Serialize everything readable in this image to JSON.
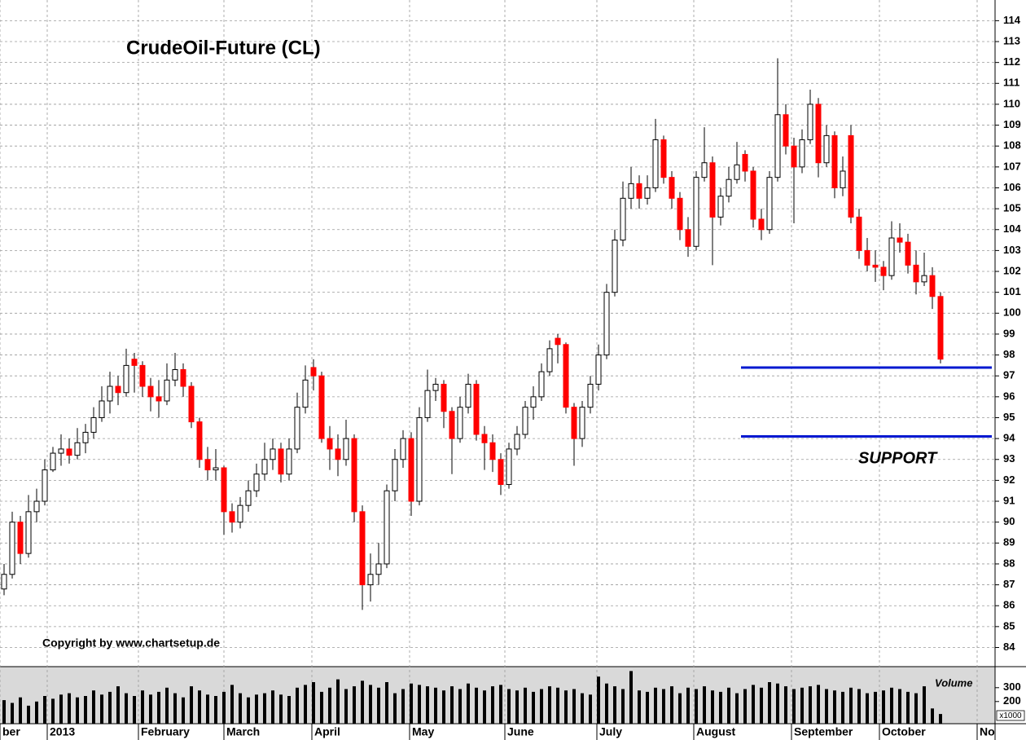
{
  "chart_data": {
    "type": "candlestick",
    "title": "CrudeOil-Future (CL)",
    "copyright": "Copyright by www.chartsetup.de",
    "support_label": "SUPPORT",
    "support_levels": [
      97.4,
      94.1
    ],
    "support_color": "#0018d0",
    "up_color": "#ffffff",
    "down_color": "#ff0000",
    "grid": true,
    "xlim": [
      0,
      122.2
    ],
    "xticks": [
      {
        "value": 0,
        "label": "ber"
      },
      {
        "value": 5.8,
        "label": "2013"
      },
      {
        "value": 17,
        "label": "February"
      },
      {
        "value": 27.5,
        "label": "March"
      },
      {
        "value": 38.3,
        "label": "April"
      },
      {
        "value": 50.3,
        "label": "May"
      },
      {
        "value": 62,
        "label": "June"
      },
      {
        "value": 73.3,
        "label": "July"
      },
      {
        "value": 85.2,
        "label": "August"
      },
      {
        "value": 97.2,
        "label": "September"
      },
      {
        "value": 108,
        "label": "October"
      },
      {
        "value": 120,
        "label": "No"
      }
    ],
    "ylim": [
      83.2,
      114.6
    ],
    "yticks": [
      84,
      85,
      86,
      87,
      88,
      89,
      90,
      91,
      92,
      93,
      94,
      95,
      96,
      97,
      98,
      99,
      100,
      101,
      102,
      103,
      104,
      105,
      106,
      107,
      108,
      109,
      110,
      111,
      112,
      113,
      114
    ],
    "open": [
      86.8,
      87.5,
      90.0,
      88.5,
      90.5,
      91.0,
      92.5,
      93.3,
      93.5,
      93.2,
      93.8,
      94.3,
      95.0,
      95.8,
      96.5,
      96.2,
      97.8,
      97.5,
      96.5,
      96.0,
      95.8,
      96.8,
      97.3,
      96.5,
      94.8,
      93.0,
      92.5,
      92.6,
      90.5,
      90.0,
      90.8,
      91.5,
      92.3,
      93.0,
      93.5,
      92.3,
      93.5,
      95.5,
      97.4,
      97.0,
      94.0,
      93.5,
      93.0,
      94.0,
      90.5,
      87.0,
      87.5,
      88.0,
      91.5,
      93.0,
      94.0,
      91.0,
      95.0,
      96.3,
      96.6,
      95.3,
      94.0,
      95.5,
      96.6,
      94.2,
      93.8,
      93.0,
      91.8,
      93.5,
      94.2,
      95.5,
      96.0,
      97.2,
      98.8,
      98.5,
      95.5,
      94.0,
      95.5,
      96.6,
      98.0,
      101.0,
      103.5,
      105.5,
      106.2,
      105.5,
      106.0,
      108.3,
      106.5,
      105.5,
      104.0,
      103.2,
      106.5,
      107.2,
      104.6,
      105.6,
      106.4,
      107.6,
      106.8,
      104.5,
      104.0,
      106.5,
      109.5,
      108.0,
      107.0,
      108.3,
      110.0,
      107.2,
      108.5,
      106.0,
      108.5,
      104.6,
      103.0,
      102.3,
      102.2,
      101.8,
      103.6,
      103.4,
      102.3,
      101.5,
      101.8,
      100.8
    ],
    "high": [
      88.0,
      90.5,
      90.3,
      91.3,
      91.6,
      93.0,
      93.6,
      94.2,
      94.0,
      94.5,
      94.7,
      95.5,
      96.5,
      97.2,
      97.0,
      98.3,
      98.1,
      97.7,
      96.9,
      96.8,
      97.6,
      98.1,
      97.6,
      96.7,
      95.0,
      93.6,
      93.5,
      92.7,
      90.9,
      91.2,
      92.0,
      92.8,
      93.8,
      94.0,
      93.8,
      94.0,
      96.2,
      97.5,
      97.8,
      97.2,
      94.6,
      94.2,
      94.9,
      94.2,
      90.8,
      88.5,
      89.0,
      91.8,
      93.5,
      94.4,
      94.3,
      95.5,
      97.3,
      96.9,
      96.8,
      95.5,
      96.0,
      97.1,
      96.8,
      94.6,
      94.2,
      93.3,
      93.8,
      94.6,
      95.8,
      96.5,
      97.6,
      98.7,
      99.0,
      98.6,
      95.7,
      95.8,
      97.0,
      98.5,
      101.4,
      104.0,
      106.3,
      107.0,
      106.6,
      106.6,
      109.3,
      108.5,
      106.8,
      105.8,
      104.6,
      106.8,
      108.9,
      107.5,
      106.0,
      107.0,
      108.2,
      107.8,
      107.0,
      105.0,
      106.8,
      112.2,
      110.0,
      108.4,
      108.8,
      110.7,
      110.3,
      109.0,
      108.7,
      107.5,
      109.0,
      105.0,
      103.6,
      103.0,
      102.5,
      104.4,
      104.3,
      103.8,
      103.0,
      102.9,
      102.2,
      101.0
    ],
    "low": [
      86.5,
      87.3,
      88.0,
      88.3,
      90.0,
      90.8,
      92.4,
      92.7,
      92.8,
      93.0,
      93.3,
      94.0,
      94.8,
      95.2,
      95.6,
      96.0,
      96.2,
      96.0,
      95.3,
      95.0,
      95.6,
      96.5,
      96.0,
      94.5,
      92.6,
      92.0,
      92.0,
      89.4,
      89.5,
      89.7,
      90.5,
      91.2,
      92.0,
      92.5,
      91.9,
      92.0,
      93.3,
      95.2,
      96.3,
      93.8,
      92.5,
      92.2,
      92.7,
      90.0,
      85.8,
      86.2,
      87.0,
      87.8,
      91.0,
      92.6,
      90.3,
      90.8,
      94.8,
      95.8,
      94.5,
      92.3,
      93.8,
      95.2,
      93.9,
      92.5,
      92.4,
      91.3,
      91.6,
      93.2,
      94.0,
      94.9,
      95.8,
      97.0,
      97.6,
      95.2,
      92.7,
      93.6,
      95.2,
      96.3,
      97.8,
      100.8,
      103.2,
      105.0,
      105.0,
      105.2,
      105.8,
      106.2,
      105.0,
      103.5,
      102.7,
      103.0,
      106.3,
      102.3,
      104.2,
      105.3,
      106.2,
      106.3,
      104.1,
      103.5,
      103.8,
      106.3,
      107.6,
      104.3,
      106.7,
      108.1,
      106.5,
      107.0,
      105.5,
      105.6,
      104.3,
      102.6,
      102.0,
      101.5,
      101.1,
      101.6,
      102.9,
      101.9,
      100.9,
      101.3,
      100.2,
      97.6
    ],
    "close": [
      87.5,
      90.0,
      88.5,
      90.5,
      91.0,
      92.5,
      93.3,
      93.5,
      93.2,
      93.8,
      94.3,
      95.0,
      95.8,
      96.5,
      96.2,
      97.5,
      97.5,
      96.5,
      96.0,
      95.8,
      96.8,
      97.3,
      96.5,
      94.8,
      93.0,
      92.5,
      92.6,
      90.5,
      90.0,
      90.8,
      91.5,
      92.3,
      93.0,
      93.5,
      92.3,
      93.5,
      95.5,
      96.8,
      97.0,
      94.0,
      93.5,
      93.0,
      94.0,
      90.5,
      87.0,
      87.5,
      88.0,
      91.5,
      93.0,
      94.0,
      91.0,
      95.0,
      96.3,
      96.6,
      95.3,
      94.0,
      95.5,
      96.6,
      94.2,
      93.8,
      93.0,
      91.8,
      93.5,
      94.2,
      95.5,
      96.0,
      97.2,
      98.3,
      98.5,
      95.5,
      94.0,
      95.5,
      96.6,
      98.0,
      101.0,
      103.5,
      105.5,
      106.2,
      105.5,
      106.0,
      108.3,
      106.5,
      105.5,
      104.0,
      103.2,
      106.5,
      107.2,
      104.6,
      105.6,
      106.4,
      107.1,
      106.8,
      104.5,
      104.0,
      106.5,
      109.5,
      108.0,
      107.0,
      108.3,
      110.0,
      107.2,
      108.5,
      106.0,
      106.8,
      104.6,
      103.0,
      102.3,
      102.2,
      101.8,
      103.6,
      103.4,
      102.3,
      101.5,
      101.8,
      100.8,
      97.8
    ],
    "volume": {
      "label": "Volume",
      "unit_label": "x1000",
      "color": "#000000",
      "ylim": [
        40,
        440
      ],
      "yticks": [
        200,
        300
      ],
      "values": [
        210,
        190,
        230,
        170,
        200,
        240,
        220,
        250,
        260,
        230,
        240,
        280,
        250,
        270,
        310,
        260,
        240,
        280,
        250,
        270,
        300,
        260,
        230,
        310,
        280,
        250,
        240,
        270,
        320,
        260,
        230,
        250,
        260,
        280,
        250,
        240,
        300,
        320,
        340,
        270,
        300,
        360,
        290,
        310,
        350,
        320,
        300,
        340,
        260,
        290,
        330,
        320,
        310,
        300,
        280,
        310,
        290,
        330,
        300,
        280,
        310,
        320,
        290,
        280,
        300,
        270,
        290,
        310,
        300,
        280,
        290,
        260,
        250,
        380,
        330,
        310,
        290,
        420,
        280,
        270,
        300,
        290,
        310,
        260,
        300,
        290,
        310,
        280,
        270,
        300,
        260,
        290,
        320,
        300,
        340,
        330,
        310,
        290,
        300,
        310,
        320,
        290,
        280,
        270,
        300,
        290,
        260,
        270,
        280,
        300,
        290,
        270,
        260,
        310,
        150,
        110
      ]
    }
  }
}
